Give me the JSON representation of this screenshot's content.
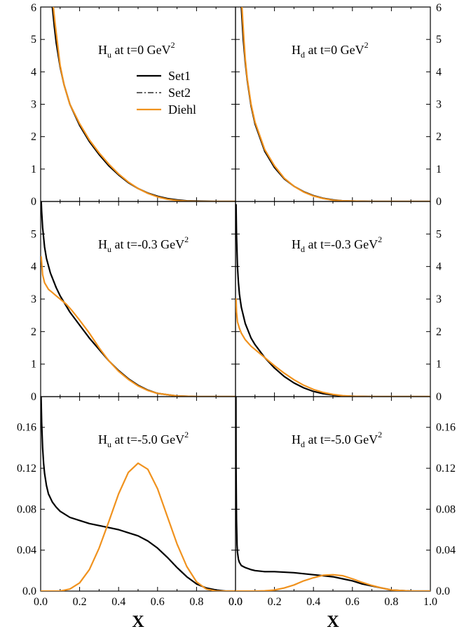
{
  "chart_data": [
    {
      "type": "line",
      "title": {
        "main": "H",
        "sub": "u",
        "rest": " at t=0 GeV",
        "sup": "2"
      },
      "xlim": [
        0,
        1
      ],
      "ylim": [
        0,
        6
      ],
      "yticks": [
        "0",
        "1",
        "2",
        "3",
        "4",
        "5",
        "6"
      ],
      "show_legend": true,
      "series": [
        {
          "name": "Set1",
          "x": [
            0.06,
            0.07,
            0.08,
            0.1,
            0.12,
            0.15,
            0.2,
            0.25,
            0.3,
            0.35,
            0.4,
            0.45,
            0.5,
            0.55,
            0.6,
            0.65,
            0.7,
            0.75,
            0.8,
            0.9,
            1.0
          ],
          "y": [
            6.0,
            5.4,
            4.9,
            4.15,
            3.6,
            3.0,
            2.35,
            1.85,
            1.45,
            1.1,
            0.82,
            0.58,
            0.4,
            0.26,
            0.16,
            0.09,
            0.05,
            0.02,
            0.01,
            0.0,
            0.0
          ]
        },
        {
          "name": "Set2",
          "x": [
            0.06,
            0.07,
            0.08,
            0.1,
            0.12,
            0.15,
            0.2,
            0.25,
            0.3,
            0.35,
            0.4,
            0.45,
            0.5,
            0.55,
            0.6,
            0.65,
            0.7,
            0.75,
            0.8,
            0.9,
            1.0
          ],
          "y": [
            6.0,
            5.4,
            4.9,
            4.15,
            3.6,
            3.0,
            2.35,
            1.85,
            1.45,
            1.1,
            0.82,
            0.58,
            0.4,
            0.26,
            0.16,
            0.09,
            0.05,
            0.02,
            0.01,
            0.0,
            0.0
          ]
        },
        {
          "name": "Diehl",
          "x": [
            0.065,
            0.075,
            0.085,
            0.1,
            0.12,
            0.15,
            0.2,
            0.25,
            0.3,
            0.35,
            0.4,
            0.45,
            0.5,
            0.55,
            0.6,
            0.65,
            0.7,
            0.75,
            0.8,
            0.9,
            1.0
          ],
          "y": [
            6.0,
            5.45,
            4.95,
            4.2,
            3.6,
            3.0,
            2.4,
            1.9,
            1.5,
            1.15,
            0.85,
            0.6,
            0.4,
            0.25,
            0.14,
            0.07,
            0.03,
            0.01,
            0.0,
            0.0,
            0.0
          ]
        }
      ]
    },
    {
      "type": "line",
      "title": {
        "main": "H",
        "sub": "d",
        "rest": " at t=0 GeV",
        "sup": "2"
      },
      "xlim": [
        0,
        1
      ],
      "ylim": [
        0,
        6
      ],
      "yticks": [
        "0",
        "1",
        "2",
        "3",
        "4",
        "5",
        "6"
      ],
      "show_legend": false,
      "series": [
        {
          "name": "Set1",
          "x": [
            0.03,
            0.035,
            0.04,
            0.05,
            0.06,
            0.08,
            0.1,
            0.15,
            0.2,
            0.25,
            0.3,
            0.35,
            0.4,
            0.45,
            0.5,
            0.55,
            0.6,
            0.7,
            0.8,
            1.0
          ],
          "y": [
            6.0,
            5.5,
            5.0,
            4.3,
            3.75,
            2.95,
            2.4,
            1.55,
            1.05,
            0.7,
            0.47,
            0.3,
            0.18,
            0.1,
            0.05,
            0.02,
            0.01,
            0.0,
            0.0,
            0.0
          ]
        },
        {
          "name": "Set2",
          "x": [
            0.03,
            0.035,
            0.04,
            0.05,
            0.06,
            0.08,
            0.1,
            0.15,
            0.2,
            0.25,
            0.3,
            0.35,
            0.4,
            0.45,
            0.5,
            0.55,
            0.6,
            0.7,
            0.8,
            1.0
          ],
          "y": [
            6.0,
            5.5,
            5.0,
            4.3,
            3.75,
            2.95,
            2.4,
            1.55,
            1.05,
            0.7,
            0.47,
            0.3,
            0.18,
            0.1,
            0.05,
            0.02,
            0.01,
            0.0,
            0.0,
            0.0
          ]
        },
        {
          "name": "Diehl",
          "x": [
            0.033,
            0.038,
            0.043,
            0.05,
            0.06,
            0.08,
            0.1,
            0.15,
            0.2,
            0.25,
            0.3,
            0.35,
            0.4,
            0.45,
            0.5,
            0.55,
            0.6,
            0.7,
            0.8,
            1.0
          ],
          "y": [
            6.0,
            5.5,
            5.0,
            4.4,
            3.8,
            3.0,
            2.45,
            1.6,
            1.1,
            0.72,
            0.47,
            0.29,
            0.17,
            0.09,
            0.04,
            0.02,
            0.01,
            0.0,
            0.0,
            0.0
          ]
        }
      ]
    },
    {
      "type": "line",
      "title": {
        "main": "H",
        "sub": "u",
        "rest": " at t=-0.3 GeV",
        "sup": "2"
      },
      "xlim": [
        0,
        1
      ],
      "ylim": [
        0,
        6
      ],
      "yticks": [
        "0",
        "1",
        "2",
        "3",
        "4",
        "5",
        ""
      ],
      "show_legend": false,
      "series": [
        {
          "name": "Set1",
          "x": [
            0.003,
            0.005,
            0.01,
            0.02,
            0.03,
            0.05,
            0.08,
            0.1,
            0.15,
            0.2,
            0.25,
            0.3,
            0.35,
            0.4,
            0.45,
            0.5,
            0.55,
            0.6,
            0.7,
            0.8,
            0.9,
            1.0
          ],
          "y": [
            6.0,
            5.7,
            5.2,
            4.6,
            4.25,
            3.8,
            3.35,
            3.1,
            2.6,
            2.2,
            1.8,
            1.45,
            1.1,
            0.8,
            0.55,
            0.35,
            0.2,
            0.1,
            0.02,
            0.0,
            0.0,
            0.0
          ]
        },
        {
          "name": "Set2",
          "x": [
            0.003,
            0.005,
            0.01,
            0.02,
            0.03,
            0.05,
            0.08,
            0.1,
            0.15,
            0.2,
            0.25,
            0.3,
            0.35,
            0.4,
            0.45,
            0.5,
            0.55,
            0.6,
            0.7,
            0.8,
            0.9,
            1.0
          ],
          "y": [
            6.0,
            5.7,
            5.2,
            4.6,
            4.25,
            3.8,
            3.35,
            3.1,
            2.6,
            2.2,
            1.8,
            1.45,
            1.1,
            0.8,
            0.55,
            0.35,
            0.2,
            0.1,
            0.02,
            0.0,
            0.0,
            0.0
          ]
        },
        {
          "name": "Diehl",
          "x": [
            0.003,
            0.01,
            0.02,
            0.04,
            0.06,
            0.08,
            0.1,
            0.13,
            0.16,
            0.2,
            0.25,
            0.3,
            0.35,
            0.4,
            0.45,
            0.5,
            0.55,
            0.6,
            0.7,
            0.8,
            0.9,
            1.0
          ],
          "y": [
            4.3,
            3.75,
            3.5,
            3.3,
            3.2,
            3.1,
            3.0,
            2.85,
            2.65,
            2.35,
            1.95,
            1.5,
            1.1,
            0.78,
            0.53,
            0.33,
            0.19,
            0.1,
            0.02,
            0.0,
            0.0,
            0.0
          ]
        }
      ]
    },
    {
      "type": "line",
      "title": {
        "main": "H",
        "sub": "d",
        "rest": " at t=-0.3 GeV",
        "sup": "2"
      },
      "xlim": [
        0,
        1
      ],
      "ylim": [
        0,
        6
      ],
      "yticks": [
        "0",
        "1",
        "2",
        "3",
        "4",
        "5",
        ""
      ],
      "show_legend": false,
      "series": [
        {
          "name": "Set1",
          "x": [
            0.003,
            0.005,
            0.01,
            0.015,
            0.02,
            0.03,
            0.05,
            0.08,
            0.1,
            0.15,
            0.2,
            0.25,
            0.3,
            0.35,
            0.4,
            0.45,
            0.5,
            0.55,
            0.6,
            0.7,
            0.8,
            1.0
          ],
          "y": [
            5.9,
            5.0,
            4.0,
            3.5,
            3.15,
            2.75,
            2.25,
            1.8,
            1.6,
            1.2,
            0.88,
            0.62,
            0.42,
            0.27,
            0.16,
            0.09,
            0.05,
            0.02,
            0.01,
            0.0,
            0.0,
            0.0
          ]
        },
        {
          "name": "Set2",
          "x": [
            0.003,
            0.005,
            0.01,
            0.015,
            0.02,
            0.03,
            0.05,
            0.08,
            0.1,
            0.15,
            0.2,
            0.25,
            0.3,
            0.35,
            0.4,
            0.45,
            0.5,
            0.55,
            0.6,
            0.7,
            0.8,
            1.0
          ],
          "y": [
            5.9,
            5.0,
            4.0,
            3.5,
            3.15,
            2.75,
            2.25,
            1.8,
            1.6,
            1.2,
            0.88,
            0.62,
            0.42,
            0.27,
            0.16,
            0.09,
            0.05,
            0.02,
            0.01,
            0.0,
            0.0,
            0.0
          ]
        },
        {
          "name": "Diehl",
          "x": [
            0.003,
            0.005,
            0.01,
            0.02,
            0.03,
            0.05,
            0.08,
            0.1,
            0.15,
            0.2,
            0.25,
            0.3,
            0.35,
            0.4,
            0.45,
            0.5,
            0.55,
            0.6,
            0.7,
            0.8,
            1.0
          ],
          "y": [
            3.0,
            2.6,
            2.3,
            2.1,
            1.95,
            1.75,
            1.55,
            1.45,
            1.2,
            0.95,
            0.72,
            0.52,
            0.35,
            0.22,
            0.13,
            0.07,
            0.03,
            0.01,
            0.0,
            0.0,
            0.0
          ]
        }
      ]
    },
    {
      "type": "line",
      "title": {
        "main": "H",
        "sub": "u",
        "rest": " at t=-5.0 GeV",
        "sup": "2"
      },
      "xlim": [
        0,
        1
      ],
      "ylim": [
        0,
        0.19
      ],
      "yticks": [
        "0.0",
        "0.04",
        "0.08",
        "0.12",
        "0.16"
      ],
      "ytick_values": [
        0,
        0.04,
        0.08,
        0.12,
        0.16
      ],
      "show_legend": false,
      "series": [
        {
          "name": "Set1",
          "x": [
            0.002,
            0.005,
            0.01,
            0.015,
            0.02,
            0.03,
            0.04,
            0.06,
            0.08,
            0.1,
            0.15,
            0.2,
            0.25,
            0.3,
            0.35,
            0.4,
            0.45,
            0.5,
            0.55,
            0.6,
            0.65,
            0.7,
            0.75,
            0.8,
            0.85,
            0.9,
            0.95,
            1.0
          ],
          "y": [
            0.19,
            0.165,
            0.14,
            0.125,
            0.115,
            0.103,
            0.095,
            0.087,
            0.082,
            0.078,
            0.072,
            0.069,
            0.066,
            0.064,
            0.062,
            0.06,
            0.057,
            0.054,
            0.049,
            0.042,
            0.033,
            0.023,
            0.014,
            0.007,
            0.003,
            0.001,
            0.0,
            0.0
          ]
        },
        {
          "name": "Set2",
          "x": [
            0.002,
            0.005,
            0.01,
            0.015,
            0.02,
            0.03,
            0.04,
            0.06,
            0.08,
            0.1,
            0.15,
            0.2,
            0.25,
            0.3,
            0.35,
            0.4,
            0.45,
            0.5,
            0.55,
            0.6,
            0.65,
            0.7,
            0.75,
            0.8,
            0.85,
            0.9,
            0.95,
            1.0
          ],
          "y": [
            0.19,
            0.165,
            0.14,
            0.125,
            0.115,
            0.103,
            0.095,
            0.087,
            0.082,
            0.078,
            0.072,
            0.069,
            0.066,
            0.064,
            0.062,
            0.06,
            0.057,
            0.054,
            0.049,
            0.042,
            0.033,
            0.023,
            0.014,
            0.007,
            0.003,
            0.001,
            0.0,
            0.0
          ]
        },
        {
          "name": "Diehl",
          "x": [
            0.0,
            0.1,
            0.15,
            0.2,
            0.25,
            0.3,
            0.35,
            0.4,
            0.45,
            0.5,
            0.55,
            0.6,
            0.65,
            0.7,
            0.75,
            0.8,
            0.85,
            0.9,
            0.95,
            1.0
          ],
          "y": [
            0.0,
            0.0,
            0.002,
            0.008,
            0.021,
            0.042,
            0.068,
            0.095,
            0.116,
            0.125,
            0.119,
            0.1,
            0.073,
            0.046,
            0.024,
            0.009,
            0.002,
            0.0,
            0.0,
            0.0
          ]
        }
      ]
    },
    {
      "type": "line",
      "title": {
        "main": "H",
        "sub": "d",
        "rest": " at t=-5.0 GeV",
        "sup": "2"
      },
      "xlim": [
        0,
        1
      ],
      "ylim": [
        0,
        0.19
      ],
      "yticks": [
        "0.0",
        "0.04",
        "0.08",
        "0.12",
        "0.16"
      ],
      "ytick_values": [
        0,
        0.04,
        0.08,
        0.12,
        0.16
      ],
      "show_legend": false,
      "series": [
        {
          "name": "Set1",
          "x": [
            0.002,
            0.003,
            0.005,
            0.008,
            0.01,
            0.015,
            0.02,
            0.03,
            0.05,
            0.08,
            0.1,
            0.15,
            0.2,
            0.3,
            0.4,
            0.45,
            0.5,
            0.55,
            0.6,
            0.65,
            0.7,
            0.75,
            0.8,
            0.9,
            1.0
          ],
          "y": [
            0.19,
            0.12,
            0.07,
            0.045,
            0.038,
            0.031,
            0.028,
            0.025,
            0.023,
            0.021,
            0.02,
            0.019,
            0.019,
            0.018,
            0.016,
            0.015,
            0.014,
            0.012,
            0.01,
            0.007,
            0.005,
            0.003,
            0.001,
            0.0,
            0.0
          ]
        },
        {
          "name": "Set2",
          "x": [
            0.002,
            0.003,
            0.005,
            0.008,
            0.01,
            0.015,
            0.02,
            0.03,
            0.05,
            0.08,
            0.1,
            0.15,
            0.2,
            0.3,
            0.4,
            0.45,
            0.5,
            0.55,
            0.6,
            0.65,
            0.7,
            0.75,
            0.8,
            0.9,
            1.0
          ],
          "y": [
            0.19,
            0.12,
            0.07,
            0.045,
            0.038,
            0.031,
            0.028,
            0.025,
            0.023,
            0.021,
            0.02,
            0.019,
            0.019,
            0.018,
            0.016,
            0.015,
            0.014,
            0.012,
            0.01,
            0.007,
            0.005,
            0.003,
            0.001,
            0.0,
            0.0
          ]
        },
        {
          "name": "Diehl",
          "x": [
            0.0,
            0.1,
            0.15,
            0.2,
            0.25,
            0.3,
            0.35,
            0.4,
            0.45,
            0.5,
            0.55,
            0.6,
            0.65,
            0.7,
            0.75,
            0.8,
            0.9,
            1.0
          ],
          "y": [
            0.0,
            0.0,
            0.0003,
            0.001,
            0.003,
            0.006,
            0.01,
            0.013,
            0.0155,
            0.016,
            0.015,
            0.012,
            0.0085,
            0.0055,
            0.003,
            0.001,
            0.0,
            0.0
          ]
        }
      ]
    }
  ],
  "x_axis": {
    "label": "X",
    "ticks": [
      "0.0",
      "0.2",
      "0.4",
      "0.6",
      "0.8",
      "1.0"
    ],
    "tick_values": [
      0,
      0.2,
      0.4,
      0.6,
      0.8,
      1.0
    ],
    "left_ticks": [
      "0.0",
      "0.2",
      "0.4",
      "0.6",
      "0.8",
      "0.0"
    ]
  },
  "legend": {
    "items": [
      {
        "name": "Set1",
        "style": "solid"
      },
      {
        "name": "Set2",
        "style": "dashdot"
      },
      {
        "name": "Diehl",
        "style": "solid"
      }
    ]
  },
  "colors": {
    "set1": "#000000",
    "set2": "#000000",
    "diehl": "#f0921e"
  }
}
